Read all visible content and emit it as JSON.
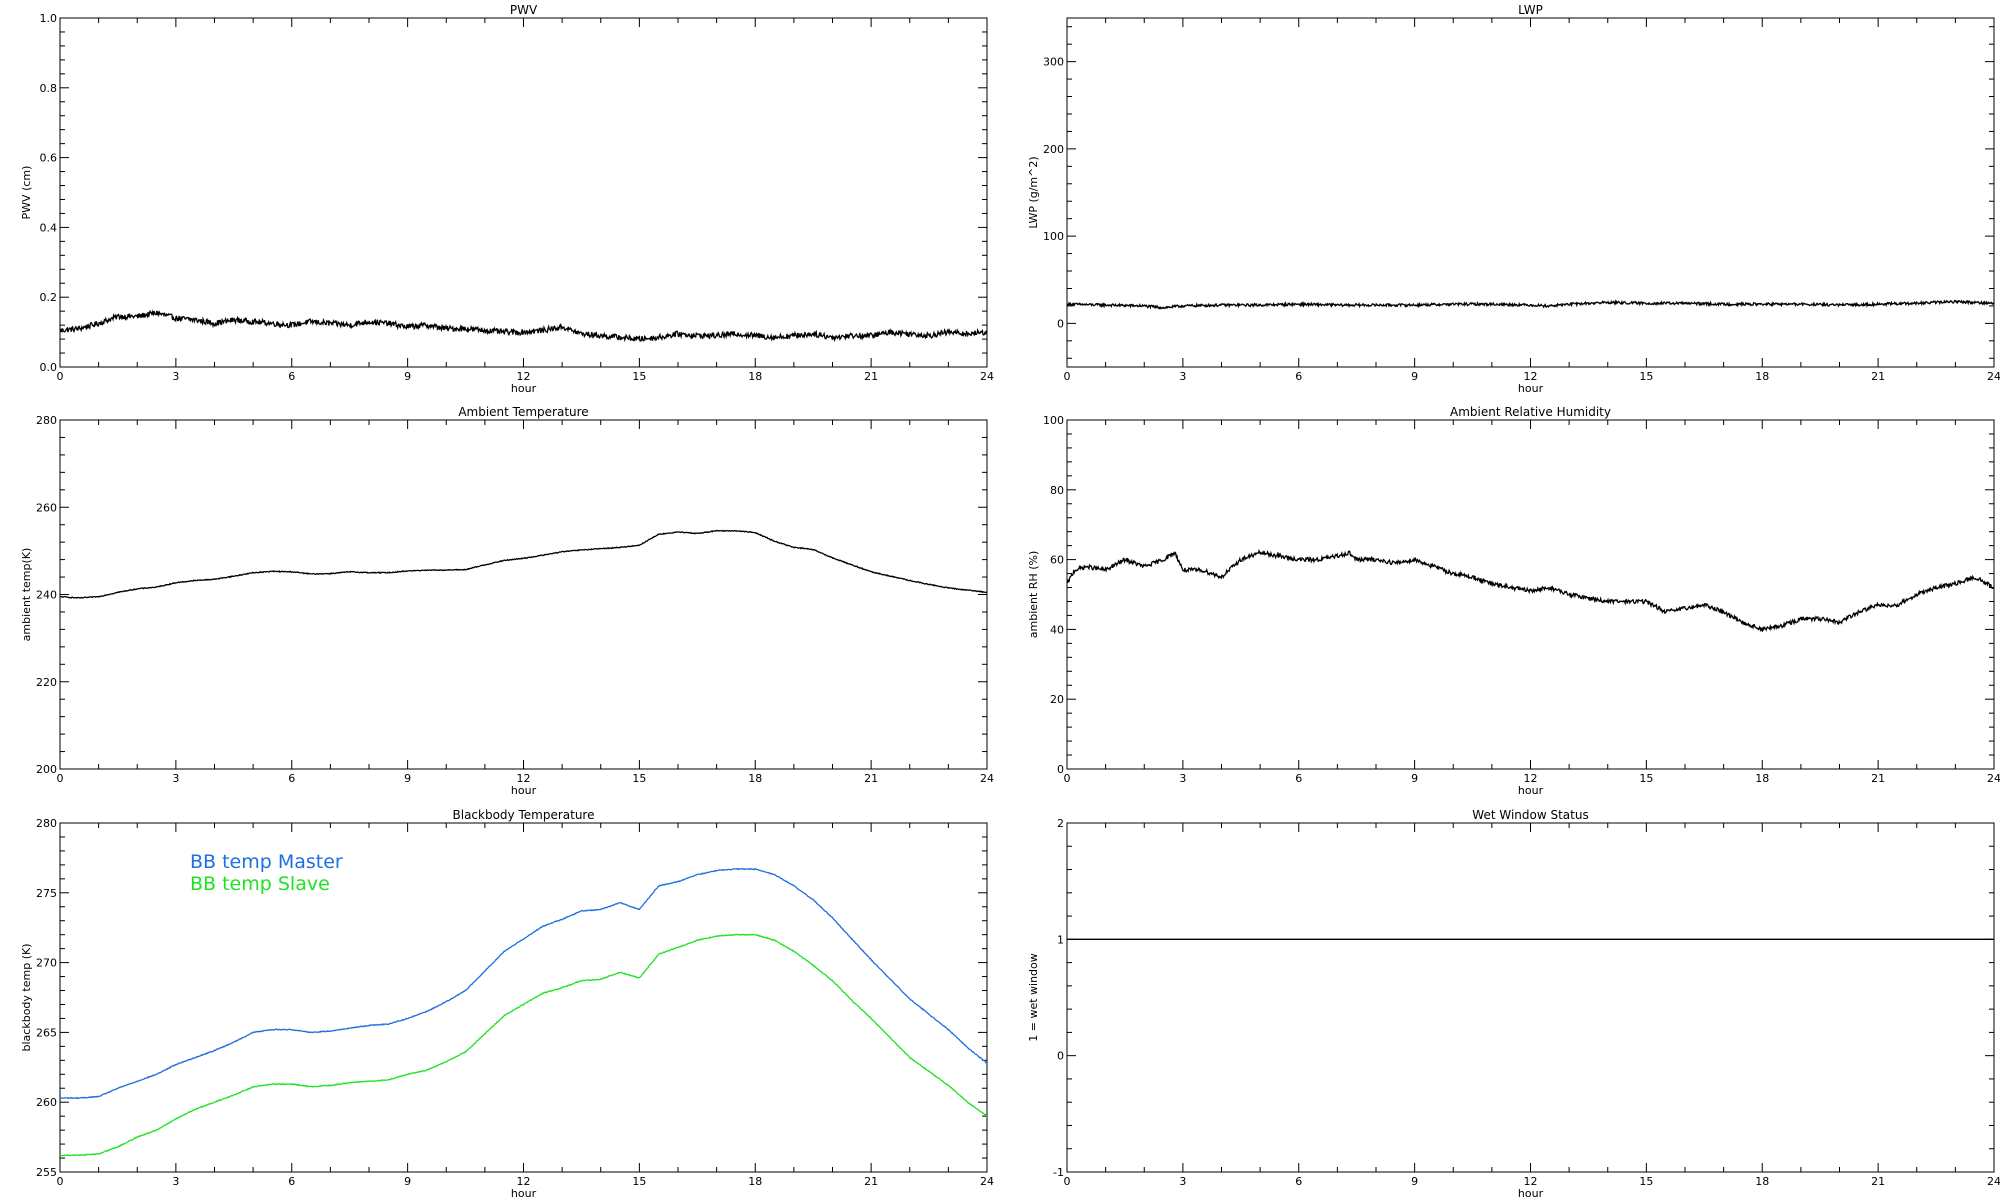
{
  "chart_data": [
    {
      "id": "pwv",
      "type": "line",
      "title": "PWV",
      "xlabel": "hour",
      "ylabel": "PWV (cm)",
      "xlim": [
        0,
        24
      ],
      "ylim": [
        0,
        1.0
      ],
      "xticks": [
        "0",
        "3",
        "6",
        "9",
        "12",
        "15",
        "18",
        "21",
        "24"
      ],
      "yticks": [
        "0.0",
        "0.2",
        "0.4",
        "0.6",
        "0.8",
        "1.0"
      ],
      "legend": [],
      "series": [
        {
          "color": "#000000",
          "noise": 0.008,
          "x": [
            0,
            0.5,
            1,
            1.5,
            2,
            2.5,
            3,
            3.5,
            4,
            4.5,
            5,
            5.5,
            6,
            6.5,
            7,
            7.5,
            8,
            8.5,
            9,
            9.5,
            10,
            10.5,
            11,
            11.5,
            12,
            12.5,
            13,
            13.5,
            14,
            14.5,
            15,
            15.5,
            16,
            16.5,
            17,
            17.5,
            18,
            18.5,
            19,
            19.5,
            20,
            20.5,
            21,
            21.5,
            22,
            22.5,
            23,
            23.5,
            24
          ],
          "y": [
            0.105,
            0.11,
            0.125,
            0.145,
            0.145,
            0.155,
            0.14,
            0.135,
            0.125,
            0.135,
            0.13,
            0.125,
            0.12,
            0.13,
            0.125,
            0.12,
            0.13,
            0.125,
            0.115,
            0.12,
            0.11,
            0.11,
            0.105,
            0.1,
            0.1,
            0.105,
            0.115,
            0.095,
            0.09,
            0.085,
            0.08,
            0.085,
            0.095,
            0.09,
            0.09,
            0.095,
            0.09,
            0.085,
            0.09,
            0.095,
            0.085,
            0.09,
            0.09,
            0.1,
            0.095,
            0.09,
            0.1,
            0.095,
            0.1
          ]
        }
      ]
    },
    {
      "id": "lwp",
      "type": "line",
      "title": "LWP",
      "xlabel": "hour",
      "ylabel": "LWP (g/m^2)",
      "xlim": [
        0,
        24
      ],
      "ylim": [
        -50,
        350
      ],
      "xticks": [
        "0",
        "3",
        "6",
        "9",
        "12",
        "15",
        "18",
        "21",
        "24"
      ],
      "yticks": [
        "0",
        "100",
        "200",
        "300"
      ],
      "legend": [],
      "series": [
        {
          "color": "#000000",
          "noise": 1.5,
          "x": [
            0,
            1,
            2,
            2.5,
            3,
            4,
            5,
            6,
            7,
            8,
            9,
            10,
            11,
            12,
            12.5,
            13,
            13.5,
            14,
            15,
            16,
            17,
            18,
            19,
            20,
            21,
            22,
            23,
            24
          ],
          "y": [
            22,
            21,
            20,
            18,
            20,
            21,
            21,
            22,
            21,
            21,
            21,
            22,
            22,
            21,
            20,
            22,
            23,
            24,
            23,
            23,
            22,
            22,
            22,
            21,
            22,
            23,
            25,
            23
          ]
        }
      ]
    },
    {
      "id": "ambient-temperature",
      "type": "line",
      "title": "Ambient Temperature",
      "xlabel": "hour",
      "ylabel": "ambient temp(K)",
      "xlim": [
        0,
        24
      ],
      "ylim": [
        200,
        280
      ],
      "xticks": [
        "0",
        "3",
        "6",
        "9",
        "12",
        "15",
        "18",
        "21",
        "24"
      ],
      "yticks": [
        "200",
        "220",
        "240",
        "260",
        "280"
      ],
      "legend": [],
      "series": [
        {
          "color": "#000000",
          "noise": 0.1,
          "x": [
            0,
            0.5,
            1,
            1.5,
            2,
            2.5,
            3,
            3.5,
            4,
            4.5,
            5,
            5.5,
            6,
            6.5,
            7,
            7.5,
            8,
            8.5,
            9,
            9.5,
            10,
            10.5,
            11,
            11.5,
            12,
            12.5,
            13,
            13.5,
            14,
            14.5,
            15,
            15.5,
            16,
            16.5,
            17,
            17.5,
            18,
            18.5,
            19,
            19.5,
            20,
            20.5,
            21,
            21.5,
            22,
            22.5,
            23,
            23.5,
            24
          ],
          "y": [
            239.5,
            239.2,
            239.5,
            240.5,
            241.3,
            241.7,
            242.7,
            243.2,
            243.5,
            244.2,
            245,
            245.3,
            245.2,
            244.7,
            244.8,
            245.2,
            245,
            245,
            245.4,
            245.6,
            245.6,
            245.7,
            246.8,
            247.8,
            248.3,
            249,
            249.8,
            250.2,
            250.5,
            250.8,
            251.3,
            253.8,
            254.3,
            254,
            254.6,
            254.6,
            254.2,
            252.2,
            250.8,
            250.3,
            248.4,
            246.8,
            245.2,
            244.2,
            243.2,
            242.3,
            241.5,
            241,
            240.5
          ]
        }
      ]
    },
    {
      "id": "ambient-relative-humidity",
      "type": "line",
      "title": "Ambient Relative Humidity",
      "xlabel": "hour",
      "ylabel": "ambient RH (%)",
      "xlim": [
        0,
        24
      ],
      "ylim": [
        0,
        100
      ],
      "xticks": [
        "0",
        "3",
        "6",
        "9",
        "12",
        "15",
        "18",
        "21",
        "24"
      ],
      "yticks": [
        "0",
        "20",
        "40",
        "60",
        "80",
        "100"
      ],
      "legend": [],
      "series": [
        {
          "color": "#000000",
          "noise": 0.6,
          "x": [
            0,
            0.2,
            0.5,
            1,
            1.5,
            2,
            2.5,
            2.8,
            3,
            3.5,
            4,
            4.5,
            5,
            5.5,
            6,
            6.5,
            7,
            7.3,
            7.5,
            8,
            8.5,
            9,
            9.5,
            10,
            10.5,
            11,
            11.5,
            12,
            12.5,
            13,
            13.5,
            14,
            14.5,
            15,
            15.5,
            16,
            16.5,
            17,
            17.5,
            18,
            18.5,
            19,
            19.5,
            20,
            20.5,
            21,
            21.5,
            22,
            22.5,
            23,
            23.5,
            24
          ],
          "y": [
            53,
            57,
            58,
            57,
            60,
            58,
            60,
            62,
            57,
            57,
            55,
            60,
            62,
            61,
            60,
            60,
            61,
            62,
            60,
            60,
            59,
            60,
            58,
            56,
            55,
            53,
            52,
            51,
            52,
            50,
            49,
            48,
            48,
            48,
            45,
            46,
            47,
            45,
            42,
            40,
            41,
            43,
            43,
            42,
            45,
            47,
            47,
            50,
            52,
            53,
            55,
            52
          ]
        }
      ]
    },
    {
      "id": "blackbody-temperature",
      "type": "line",
      "title": "Blackbody Temperature",
      "xlabel": "hour",
      "ylabel": "blackbody temp (K)",
      "xlim": [
        0,
        24
      ],
      "ylim": [
        255,
        280
      ],
      "xticks": [
        "0",
        "3",
        "6",
        "9",
        "12",
        "15",
        "18",
        "21",
        "24"
      ],
      "yticks": [
        "255",
        "260",
        "265",
        "270",
        "275",
        "280"
      ],
      "legend": [
        "BB temp Master",
        "BB temp Slave"
      ],
      "series": [
        {
          "name": "BB temp Master",
          "color": "#1e6fe0",
          "noise": 0.03,
          "x": [
            0,
            0.5,
            1,
            1.5,
            2,
            2.5,
            3,
            3.5,
            4,
            4.5,
            5,
            5.5,
            6,
            6.5,
            7,
            7.5,
            8,
            8.5,
            9,
            9.5,
            10,
            10.5,
            11,
            11.5,
            12,
            12.5,
            13,
            13.5,
            14,
            14.5,
            15,
            15.5,
            16,
            16.5,
            17,
            17.5,
            18,
            18.5,
            19,
            19.5,
            20,
            20.5,
            21,
            21.5,
            22,
            22.5,
            23,
            23.5,
            24
          ],
          "y": [
            260.3,
            260.3,
            260.4,
            261.0,
            261.5,
            262.0,
            262.7,
            263.2,
            263.7,
            264.3,
            265.0,
            265.2,
            265.2,
            265.0,
            265.1,
            265.3,
            265.5,
            265.6,
            266.0,
            266.5,
            267.2,
            268.0,
            269.4,
            270.8,
            271.7,
            272.6,
            273.1,
            273.7,
            273.8,
            274.3,
            273.8,
            275.5,
            275.8,
            276.3,
            276.6,
            276.7,
            276.7,
            276.3,
            275.5,
            274.5,
            273.2,
            271.7,
            270.2,
            268.8,
            267.4,
            266.3,
            265.2,
            263.9,
            262.8
          ]
        },
        {
          "name": "BB temp Slave",
          "color": "#22e022",
          "noise": 0.03,
          "x": [
            0,
            0.5,
            1,
            1.5,
            2,
            2.5,
            3,
            3.5,
            4,
            4.5,
            5,
            5.5,
            6,
            6.5,
            7,
            7.5,
            8,
            8.5,
            9,
            9.5,
            10,
            10.5,
            11,
            11.5,
            12,
            12.5,
            13,
            13.5,
            14,
            14.5,
            15,
            15.5,
            16,
            16.5,
            17,
            17.5,
            18,
            18.5,
            19,
            19.5,
            20,
            20.5,
            21,
            21.5,
            22,
            22.5,
            23,
            23.5,
            24
          ],
          "y": [
            256.2,
            256.2,
            256.3,
            256.8,
            257.5,
            258.0,
            258.8,
            259.5,
            260.0,
            260.5,
            261.1,
            261.3,
            261.3,
            261.1,
            261.2,
            261.4,
            261.5,
            261.6,
            262.0,
            262.3,
            262.9,
            263.6,
            264.9,
            266.2,
            267.0,
            267.8,
            268.2,
            268.7,
            268.8,
            269.3,
            268.9,
            270.6,
            271.1,
            271.6,
            271.9,
            272.0,
            272.0,
            271.6,
            270.8,
            269.8,
            268.7,
            267.3,
            266.0,
            264.6,
            263.2,
            262.2,
            261.2,
            260.0,
            259.0
          ]
        }
      ]
    },
    {
      "id": "wet-window-status",
      "type": "line",
      "title": "Wet Window Status",
      "xlabel": "hour",
      "ylabel": "1 = wet window",
      "xlim": [
        0,
        24
      ],
      "ylim": [
        -1,
        2
      ],
      "xticks": [
        "0",
        "3",
        "6",
        "9",
        "12",
        "15",
        "18",
        "21",
        "24"
      ],
      "yticks": [
        "-1",
        "0",
        "1",
        "2"
      ],
      "legend": [],
      "series": [
        {
          "color": "#000000",
          "noise": 0,
          "x": [
            0,
            24
          ],
          "y": [
            1,
            1
          ]
        }
      ]
    }
  ]
}
